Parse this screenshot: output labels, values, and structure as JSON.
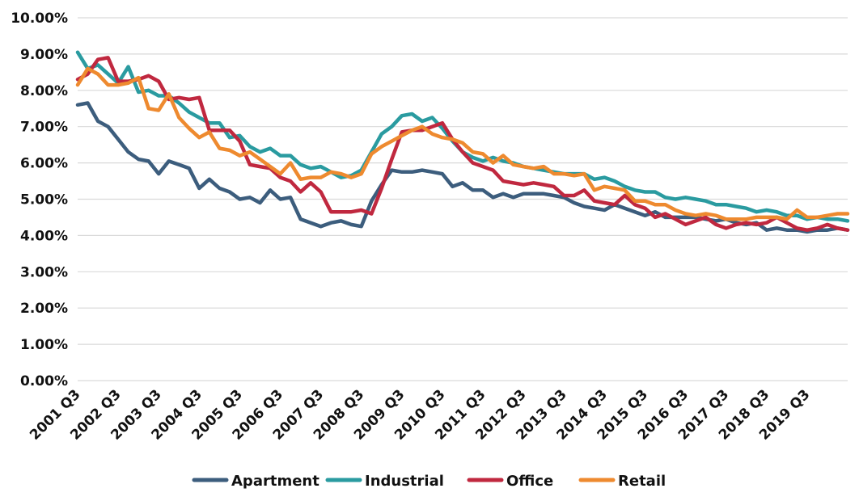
{
  "chart_data": {
    "type": "line",
    "title": "",
    "xlabel": "",
    "ylabel": "",
    "ylim": [
      0,
      10
    ],
    "y_ticks": [
      0,
      1,
      2,
      3,
      4,
      5,
      6,
      7,
      8,
      9,
      10
    ],
    "y_tick_labels": [
      "0.00%",
      "1.00%",
      "2.00%",
      "3.00%",
      "4.00%",
      "5.00%",
      "6.00%",
      "7.00%",
      "8.00%",
      "9.00%",
      "10.00%"
    ],
    "x_tick_labels": [
      "2001 Q3",
      "2002 Q3",
      "2003 Q3",
      "2004 Q3",
      "2005 Q3",
      "2006 Q3",
      "2007 Q3",
      "2008 Q3",
      "2009 Q3",
      "2010 Q3",
      "2011 Q3",
      "2012 Q3",
      "2013 Q3",
      "2014 Q3",
      "2015 Q3",
      "2016 Q3",
      "2017 Q3",
      "2018 Q3",
      "2019 Q3"
    ],
    "x_tick_step": 4,
    "grid": "horizontal",
    "legend_position": "bottom",
    "series": [
      {
        "name": "Apartment",
        "color": "#3c5d7d",
        "values": [
          7.6,
          7.65,
          7.15,
          7.0,
          6.65,
          6.3,
          6.1,
          6.05,
          5.7,
          6.05,
          5.95,
          5.85,
          5.3,
          5.55,
          5.3,
          5.2,
          5.0,
          5.05,
          4.9,
          5.25,
          5.0,
          5.05,
          4.45,
          4.35,
          4.25,
          4.35,
          4.4,
          4.3,
          4.25,
          4.95,
          5.4,
          5.8,
          5.75,
          5.75,
          5.8,
          5.75,
          5.7,
          5.35,
          5.45,
          5.25,
          5.25,
          5.05,
          5.15,
          5.05,
          5.15,
          5.15,
          5.15,
          5.1,
          5.05,
          4.9,
          4.8,
          4.75,
          4.7,
          4.85,
          4.75,
          4.65,
          4.55,
          4.65,
          4.5,
          4.5,
          4.5,
          4.5,
          4.45,
          4.4,
          4.45,
          4.35,
          4.3,
          4.35,
          4.15,
          4.2,
          4.15,
          4.15,
          4.1,
          4.15,
          4.15,
          4.2,
          4.15
        ]
      },
      {
        "name": "Industrial",
        "color": "#2a9ba0",
        "values": [
          9.05,
          8.6,
          8.7,
          8.45,
          8.2,
          8.65,
          7.95,
          8.0,
          7.85,
          7.85,
          7.65,
          7.4,
          7.25,
          7.1,
          7.1,
          6.7,
          6.75,
          6.45,
          6.3,
          6.4,
          6.2,
          6.2,
          5.95,
          5.85,
          5.9,
          5.75,
          5.6,
          5.65,
          5.8,
          6.3,
          6.8,
          7.0,
          7.3,
          7.35,
          7.15,
          7.25,
          6.95,
          6.6,
          6.3,
          6.15,
          6.05,
          6.15,
          6.05,
          6.0,
          5.9,
          5.85,
          5.8,
          5.75,
          5.7,
          5.7,
          5.7,
          5.55,
          5.6,
          5.5,
          5.35,
          5.25,
          5.2,
          5.2,
          5.05,
          5.0,
          5.05,
          5.0,
          4.95,
          4.85,
          4.85,
          4.8,
          4.75,
          4.65,
          4.7,
          4.65,
          4.55,
          4.55,
          4.45,
          4.5,
          4.45,
          4.45,
          4.4
        ]
      },
      {
        "name": "Office",
        "color": "#c0283f",
        "values": [
          8.3,
          8.45,
          8.85,
          8.9,
          8.25,
          8.25,
          8.3,
          8.4,
          8.25,
          7.75,
          7.8,
          7.75,
          7.8,
          6.9,
          6.9,
          6.9,
          6.6,
          5.95,
          5.9,
          5.85,
          5.6,
          5.5,
          5.2,
          5.45,
          5.2,
          4.65,
          4.65,
          4.65,
          4.7,
          4.6,
          5.3,
          6.1,
          6.85,
          6.9,
          6.9,
          7.0,
          7.1,
          6.65,
          6.3,
          6.0,
          5.9,
          5.8,
          5.5,
          5.45,
          5.4,
          5.45,
          5.4,
          5.35,
          5.1,
          5.1,
          5.25,
          4.95,
          4.9,
          4.85,
          5.1,
          4.85,
          4.75,
          4.5,
          4.6,
          4.45,
          4.3,
          4.4,
          4.5,
          4.3,
          4.2,
          4.3,
          4.35,
          4.3,
          4.35,
          4.5,
          4.35,
          4.2,
          4.15,
          4.2,
          4.3,
          4.2,
          4.15
        ]
      },
      {
        "name": "Retail",
        "color": "#ee8a2f",
        "values": [
          8.15,
          8.6,
          8.45,
          8.15,
          8.15,
          8.2,
          8.35,
          7.5,
          7.45,
          7.9,
          7.25,
          6.95,
          6.7,
          6.85,
          6.4,
          6.35,
          6.2,
          6.3,
          6.1,
          5.9,
          5.7,
          6.0,
          5.55,
          5.6,
          5.6,
          5.75,
          5.7,
          5.6,
          5.7,
          6.25,
          6.45,
          6.6,
          6.75,
          6.9,
          7.0,
          6.8,
          6.7,
          6.65,
          6.55,
          6.3,
          6.25,
          6.0,
          6.2,
          5.95,
          5.9,
          5.85,
          5.9,
          5.7,
          5.7,
          5.65,
          5.7,
          5.25,
          5.35,
          5.3,
          5.25,
          4.95,
          4.95,
          4.85,
          4.85,
          4.7,
          4.6,
          4.55,
          4.6,
          4.55,
          4.45,
          4.45,
          4.45,
          4.5,
          4.5,
          4.5,
          4.45,
          4.7,
          4.5,
          4.5,
          4.55,
          4.6,
          4.6
        ]
      }
    ]
  }
}
